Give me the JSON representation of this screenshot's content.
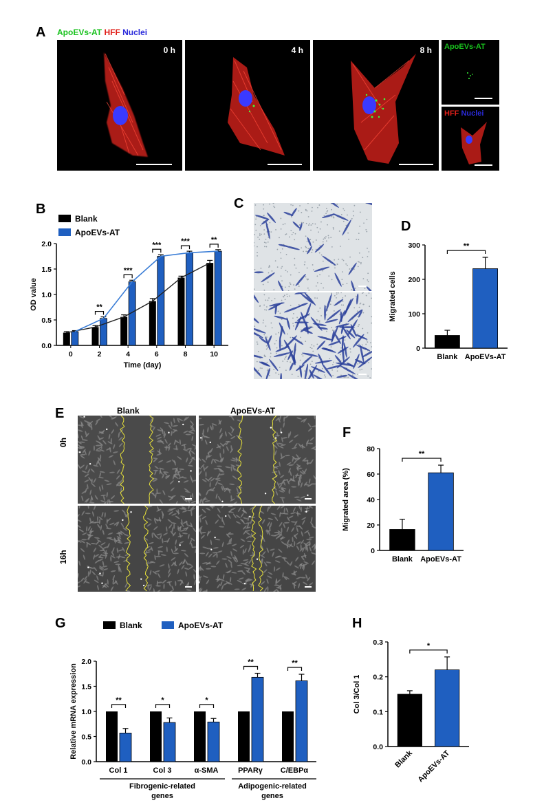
{
  "panels": {
    "A": {
      "label": "A",
      "legend": [
        {
          "text": "ApoEVs-AT",
          "color": "#19c21e"
        },
        {
          "text": "HFF",
          "color": "#e0201a"
        },
        {
          "text": "Nuclei",
          "color": "#2a2adb"
        }
      ],
      "times": [
        "0 h",
        "4 h",
        "8 h"
      ],
      "side_top": "ApoEVs-AT",
      "side_bottom_hff": "HFF",
      "side_bottom_nuclei": "Nuclei"
    },
    "B": {
      "label": "B"
    },
    "C": {
      "label": "C"
    },
    "D": {
      "label": "D"
    },
    "E": {
      "label": "E",
      "col_labels": [
        "Blank",
        "ApoEVs-AT"
      ],
      "row_labels": [
        "0h",
        "16h"
      ]
    },
    "F": {
      "label": "F"
    },
    "G": {
      "label": "G",
      "group_labels": [
        {
          "line1": "Fibrogenic-related",
          "line2": "genes"
        },
        {
          "line1": "Adipogenic-related",
          "line2": "genes"
        }
      ]
    },
    "H": {
      "label": "H"
    }
  },
  "colors": {
    "blank": "#000000",
    "treated": "#1f5fc0",
    "line_treated": "#3a7dd6",
    "line_blank": "#222222"
  },
  "chart_data": [
    {
      "id": "B",
      "type": "bar",
      "categories": [
        "0",
        "2",
        "4",
        "6",
        "8",
        "10"
      ],
      "series": [
        {
          "name": "Blank",
          "values": [
            0.25,
            0.36,
            0.56,
            0.87,
            1.33,
            1.62
          ],
          "err": [
            0.02,
            0.03,
            0.04,
            0.05,
            0.03,
            0.05
          ]
        },
        {
          "name": "ApoEVs-AT",
          "values": [
            0.27,
            0.53,
            1.25,
            1.75,
            1.82,
            1.85
          ],
          "err": [
            0.02,
            0.03,
            0.03,
            0.03,
            0.03,
            0.03
          ]
        }
      ],
      "xlabel": "Time (day)",
      "ylabel": "OD value",
      "ylim": [
        0,
        2.0
      ],
      "yticks": [
        "0.0",
        "0.5",
        "1.0",
        "1.5",
        "2.0"
      ],
      "significance": [
        "",
        "**",
        "***",
        "***",
        "***",
        "**"
      ],
      "legend_position": "top-left"
    },
    {
      "id": "D",
      "type": "bar",
      "categories": [
        "Blank",
        "ApoEVs-AT"
      ],
      "values": [
        37,
        231
      ],
      "err": [
        15,
        33
      ],
      "ylabel": "Migrated cells",
      "ylim": [
        0,
        300
      ],
      "yticks": [
        "0",
        "100",
        "200",
        "300"
      ],
      "significance": "**"
    },
    {
      "id": "F",
      "type": "bar",
      "categories": [
        "Blank",
        "ApoEVs-AT"
      ],
      "values": [
        16.5,
        61
      ],
      "err": [
        8,
        6
      ],
      "ylabel": "Migrated area (%)",
      "ylim": [
        0,
        80
      ],
      "yticks": [
        "0",
        "20",
        "40",
        "60",
        "80"
      ],
      "significance": "**"
    },
    {
      "id": "G",
      "type": "bar",
      "categories": [
        "Col 1",
        "Col 3",
        "α-SMA",
        "PPARγ",
        "C/EBPα"
      ],
      "series": [
        {
          "name": "Blank",
          "values": [
            1.0,
            1.0,
            1.0,
            1.0,
            1.0
          ],
          "err": [
            0,
            0,
            0,
            0,
            0
          ]
        },
        {
          "name": "ApoEVs-AT",
          "values": [
            0.57,
            0.78,
            0.79,
            1.68,
            1.61
          ],
          "err": [
            0.09,
            0.09,
            0.07,
            0.08,
            0.13
          ]
        }
      ],
      "ylabel": "Relative mRNA expression",
      "ylim": [
        0,
        2.0
      ],
      "yticks": [
        "0.0",
        "0.5",
        "1.0",
        "1.5",
        "2.0"
      ],
      "significance": [
        "**",
        "*",
        "*",
        "**",
        "**"
      ],
      "legend_position": "top-left"
    },
    {
      "id": "H",
      "type": "bar",
      "categories": [
        "Blank",
        "ApoEVs-AT"
      ],
      "values": [
        0.15,
        0.22
      ],
      "err": [
        0.01,
        0.037
      ],
      "ylabel": "Col 3/Col 1",
      "ylim": [
        0,
        0.3
      ],
      "yticks": [
        "0.0",
        "0.1",
        "0.2",
        "0.3"
      ],
      "significance": "*"
    }
  ]
}
